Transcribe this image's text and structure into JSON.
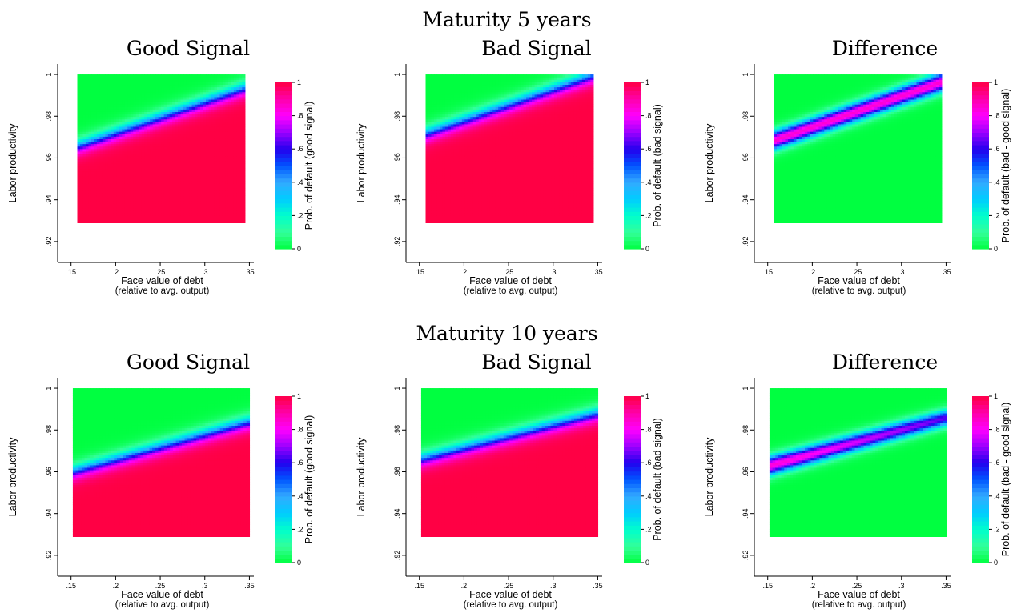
{
  "rows": [
    {
      "title": "Maturity 5 years"
    },
    {
      "title": "Maturity 10 years"
    }
  ],
  "color_scale": {
    "ticks": [
      "0",
      ".2",
      ".4",
      ".6",
      ".8",
      "1"
    ],
    "stops": [
      {
        "v": 0.0,
        "color": "#00ff40"
      },
      {
        "v": 0.1,
        "color": "#33ff99"
      },
      {
        "v": 0.2,
        "color": "#00ffcc"
      },
      {
        "v": 0.3,
        "color": "#00ccff"
      },
      {
        "v": 0.4,
        "color": "#33aaff"
      },
      {
        "v": 0.5,
        "color": "#0055ff"
      },
      {
        "v": 0.6,
        "color": "#2200ee"
      },
      {
        "v": 0.7,
        "color": "#9900ff"
      },
      {
        "v": 0.8,
        "color": "#ff00ff"
      },
      {
        "v": 0.9,
        "color": "#ff00aa"
      },
      {
        "v": 1.0,
        "color": "#ff0044"
      }
    ]
  },
  "chart_data": [
    {
      "type": "heatmap",
      "title": "Good Signal",
      "xlabel": "Face value of debt",
      "xlabel2": "(relative to avg. output)",
      "ylabel": "Labor productivity",
      "colorbar_label": "Prob. of default (good signal)",
      "xlim": [
        0.135,
        0.355
      ],
      "ylim": [
        0.91,
        1.005
      ],
      "xticks": [
        ".15",
        ".2",
        ".25",
        ".3",
        ".35"
      ],
      "yticks": [
        ".92",
        ".94",
        ".96",
        ".98",
        "1"
      ],
      "x_range": [
        0.157,
        0.345
      ],
      "y_range": [
        0.929,
        1.0
      ],
      "kind": "single",
      "boundary": [
        [
          0.157,
          0.9655
        ],
        [
          0.345,
          0.9935
        ]
      ],
      "width": 0.002
    },
    {
      "type": "heatmap",
      "title": "Bad Signal",
      "xlabel": "Face value of debt",
      "xlabel2": "(relative to avg. output)",
      "ylabel": "Labor productivity",
      "colorbar_label": "Prob. of default (bad signal)",
      "xlim": [
        0.135,
        0.355
      ],
      "ylim": [
        0.91,
        1.005
      ],
      "xticks": [
        ".15",
        ".2",
        ".25",
        ".3",
        ".35"
      ],
      "yticks": [
        ".92",
        ".94",
        ".96",
        ".98",
        "1"
      ],
      "x_range": [
        0.157,
        0.345
      ],
      "y_range": [
        0.929,
        1.0
      ],
      "kind": "single",
      "boundary": [
        [
          0.157,
          0.9715
        ],
        [
          0.345,
          0.9995
        ]
      ],
      "width": 0.002
    },
    {
      "type": "heatmap",
      "title": "Difference",
      "xlabel": "Face value of debt",
      "xlabel2": "(relative to avg. output)",
      "ylabel": "Labor productivity",
      "colorbar_label": "Prob. of default (bad - good signal)",
      "xlim": [
        0.135,
        0.355
      ],
      "ylim": [
        0.91,
        1.005
      ],
      "xticks": [
        ".15",
        ".2",
        ".25",
        ".3",
        ".35"
      ],
      "yticks": [
        ".92",
        ".94",
        ".96",
        ".98",
        "1"
      ],
      "x_range": [
        0.157,
        0.345
      ],
      "y_range": [
        0.929,
        1.0
      ],
      "kind": "band",
      "band_low": [
        [
          0.157,
          0.9655
        ],
        [
          0.345,
          0.9935
        ]
      ],
      "band_high": [
        [
          0.157,
          0.9715
        ],
        [
          0.345,
          0.9995
        ]
      ],
      "width": 0.0015
    },
    {
      "type": "heatmap",
      "title": "Good Signal",
      "xlabel": "Face value of debt",
      "xlabel2": "(relative to avg. output)",
      "ylabel": "Labor productivity",
      "colorbar_label": "Prob. of default (good signal)",
      "xlim": [
        0.135,
        0.355
      ],
      "ylim": [
        0.91,
        1.005
      ],
      "xticks": [
        ".15",
        ".2",
        ".25",
        ".3",
        ".35"
      ],
      "yticks": [
        ".92",
        ".94",
        ".96",
        ".98",
        "1"
      ],
      "x_range": [
        0.152,
        0.35
      ],
      "y_range": [
        0.929,
        1.0
      ],
      "kind": "single",
      "boundary": [
        [
          0.152,
          0.96
        ],
        [
          0.35,
          0.984
        ]
      ],
      "width": 0.002
    },
    {
      "type": "heatmap",
      "title": "Bad Signal",
      "xlabel": "Face value of debt",
      "xlabel2": "(relative to avg. output)",
      "ylabel": "Labor productivity",
      "colorbar_label": "Prob. of default (bad signal)",
      "xlim": [
        0.135,
        0.355
      ],
      "ylim": [
        0.91,
        1.005
      ],
      "xticks": [
        ".15",
        ".2",
        ".25",
        ".3",
        ".35"
      ],
      "yticks": [
        ".92",
        ".94",
        ".96",
        ".98",
        "1"
      ],
      "x_range": [
        0.152,
        0.35
      ],
      "y_range": [
        0.929,
        1.0
      ],
      "kind": "single",
      "boundary": [
        [
          0.152,
          0.966
        ],
        [
          0.35,
          0.988
        ]
      ],
      "width": 0.002
    },
    {
      "type": "heatmap",
      "title": "Difference",
      "xlabel": "Face value of debt",
      "xlabel2": "(relative to avg. output)",
      "ylabel": "Labor productivity",
      "colorbar_label": "Prob. of default (bad - good signal)",
      "xlim": [
        0.135,
        0.355
      ],
      "ylim": [
        0.91,
        1.005
      ],
      "xticks": [
        ".15",
        ".2",
        ".25",
        ".3",
        ".35"
      ],
      "yticks": [
        ".92",
        ".94",
        ".96",
        ".98",
        "1"
      ],
      "x_range": [
        0.152,
        0.35
      ],
      "y_range": [
        0.929,
        1.0
      ],
      "kind": "band",
      "band_low": [
        [
          0.152,
          0.96
        ],
        [
          0.35,
          0.984
        ]
      ],
      "band_high": [
        [
          0.152,
          0.966
        ],
        [
          0.35,
          0.988
        ]
      ],
      "width": 0.0015
    }
  ]
}
